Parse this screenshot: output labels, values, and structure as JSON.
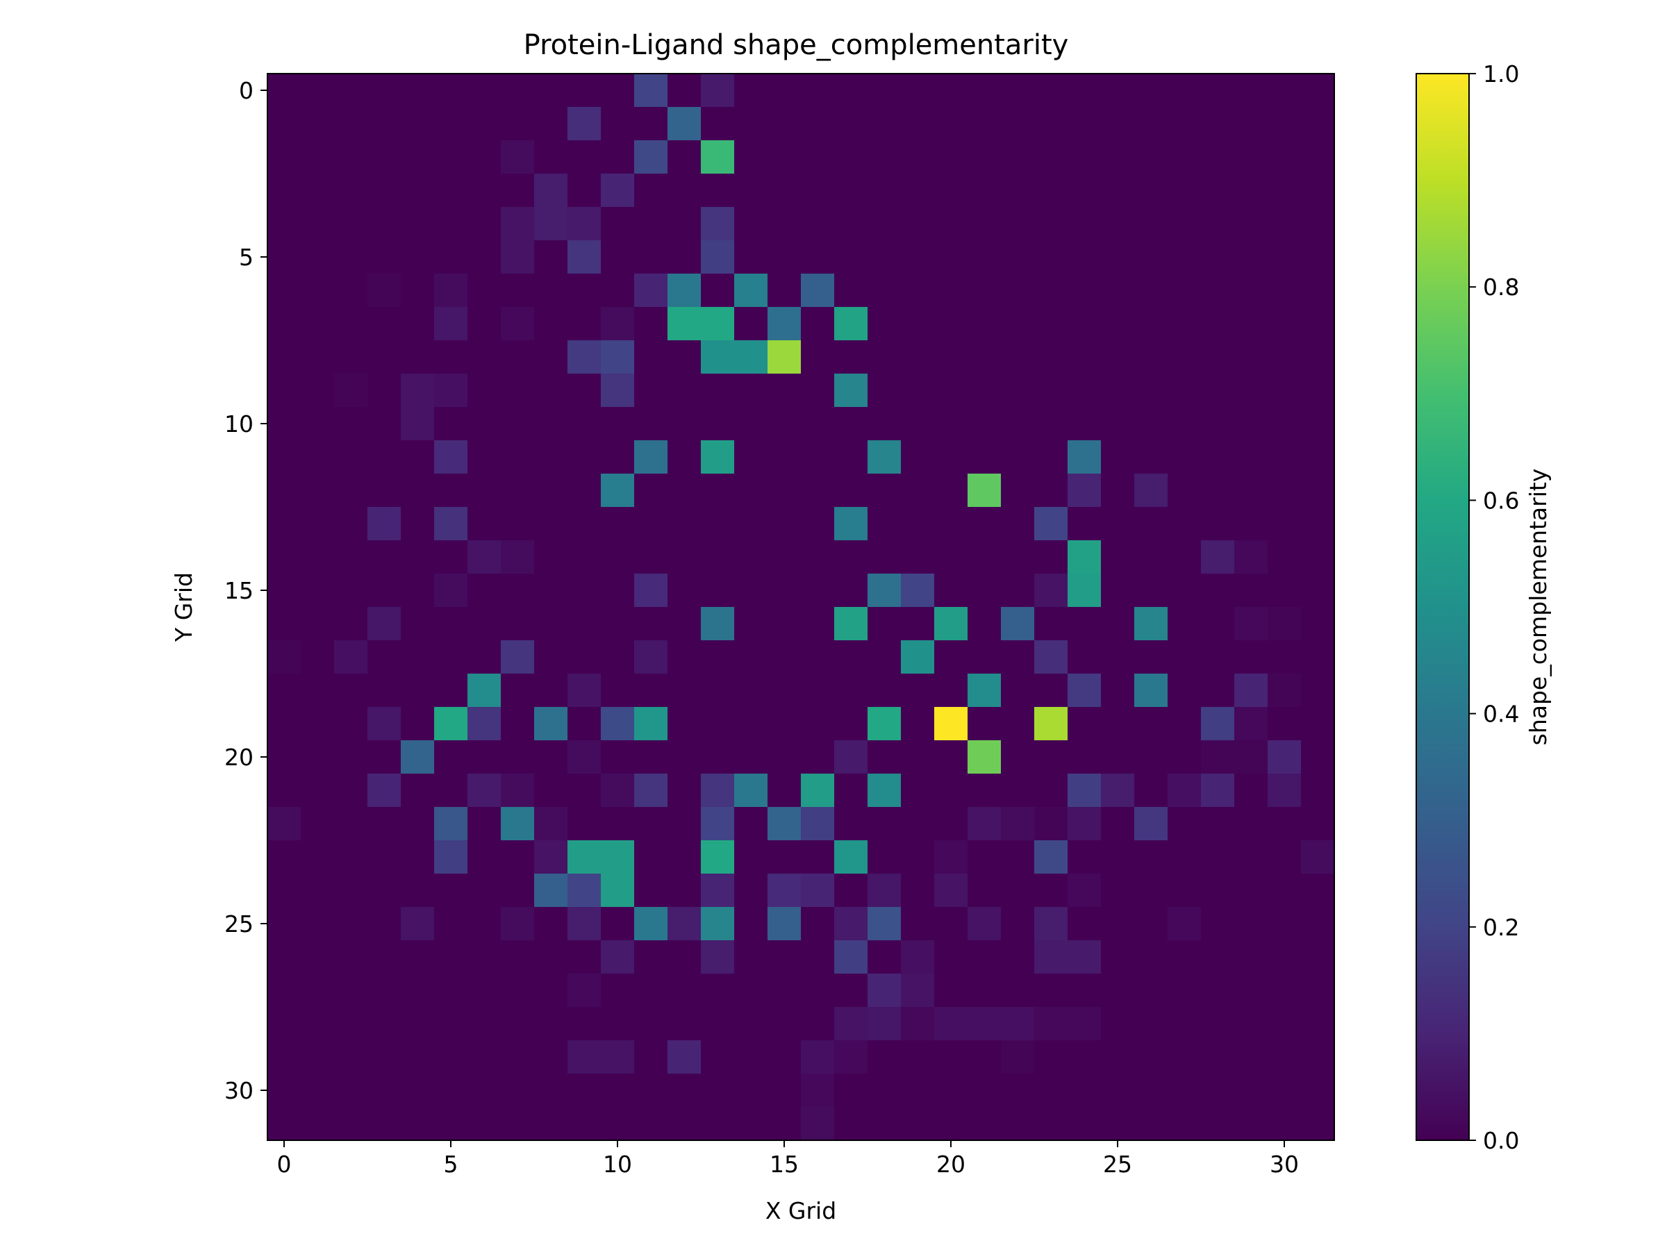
{
  "chart_data": {
    "type": "heatmap",
    "title": "Protein-Ligand shape_complementarity",
    "xlabel": "X Grid",
    "ylabel": "Y Grid",
    "colorbar_label": "shape_complementarity",
    "colormap": "viridis",
    "grid": false,
    "x_ticks": [
      0,
      5,
      10,
      15,
      20,
      25,
      30
    ],
    "y_ticks": [
      0,
      5,
      10,
      15,
      20,
      25,
      30
    ],
    "colorbar_ticks": [
      "0.0",
      "0.2",
      "0.4",
      "0.6",
      "0.8",
      "1.0"
    ],
    "vmin": 0.0,
    "vmax": 1.0,
    "xlim": [
      -0.5,
      31.5
    ],
    "ylim": [
      31.5,
      -0.5
    ],
    "values": [
      [
        0,
        0,
        0,
        0,
        0,
        0,
        0,
        0,
        0,
        0,
        0,
        0.2,
        0,
        0.07,
        0,
        0,
        0,
        0,
        0,
        0,
        0,
        0,
        0,
        0,
        0,
        0,
        0,
        0,
        0,
        0,
        0,
        0
      ],
      [
        0,
        0,
        0,
        0,
        0,
        0,
        0,
        0,
        0,
        0.13,
        0,
        0,
        0.32,
        0,
        0,
        0,
        0,
        0,
        0,
        0,
        0,
        0,
        0,
        0,
        0,
        0,
        0,
        0,
        0,
        0,
        0,
        0
      ],
      [
        0,
        0,
        0,
        0,
        0,
        0,
        0,
        0.03,
        0,
        0,
        0,
        0.22,
        0,
        0.67,
        0,
        0,
        0,
        0,
        0,
        0,
        0,
        0,
        0,
        0,
        0,
        0,
        0,
        0,
        0,
        0,
        0,
        0
      ],
      [
        0,
        0,
        0,
        0,
        0,
        0,
        0,
        0,
        0.08,
        0,
        0.1,
        0,
        0,
        0,
        0,
        0,
        0,
        0,
        0,
        0,
        0,
        0,
        0,
        0,
        0,
        0,
        0,
        0,
        0,
        0,
        0,
        0
      ],
      [
        0,
        0,
        0,
        0,
        0,
        0,
        0,
        0.05,
        0.08,
        0.07,
        0,
        0,
        0,
        0.15,
        0,
        0,
        0,
        0,
        0,
        0,
        0,
        0,
        0,
        0,
        0,
        0,
        0,
        0,
        0,
        0,
        0,
        0
      ],
      [
        0,
        0,
        0,
        0,
        0,
        0,
        0,
        0.05,
        0,
        0.15,
        0,
        0,
        0,
        0.18,
        0,
        0,
        0,
        0,
        0,
        0,
        0,
        0,
        0,
        0,
        0,
        0,
        0,
        0,
        0,
        0,
        0,
        0
      ],
      [
        0,
        0,
        0,
        0.01,
        0,
        0.03,
        0,
        0,
        0,
        0,
        0,
        0.1,
        0.4,
        0,
        0.43,
        0,
        0.3,
        0,
        0,
        0,
        0,
        0,
        0,
        0,
        0,
        0,
        0,
        0,
        0,
        0,
        0,
        0
      ],
      [
        0,
        0,
        0,
        0,
        0,
        0.06,
        0,
        0.02,
        0,
        0,
        0.03,
        0,
        0.6,
        0.6,
        0,
        0.36,
        0,
        0.58,
        0,
        0,
        0,
        0,
        0,
        0,
        0,
        0,
        0,
        0,
        0,
        0,
        0,
        0
      ],
      [
        0,
        0,
        0,
        0,
        0,
        0,
        0,
        0,
        0,
        0.17,
        0.2,
        0,
        0,
        0.5,
        0.5,
        0.85,
        0,
        0,
        0,
        0,
        0,
        0,
        0,
        0,
        0,
        0,
        0,
        0,
        0,
        0,
        0,
        0
      ],
      [
        0,
        0,
        0.01,
        0,
        0.05,
        0.04,
        0,
        0,
        0,
        0,
        0.15,
        0,
        0,
        0,
        0,
        0,
        0,
        0.45,
        0,
        0,
        0,
        0,
        0,
        0,
        0,
        0,
        0,
        0,
        0,
        0,
        0,
        0
      ],
      [
        0,
        0,
        0,
        0,
        0.05,
        0,
        0,
        0,
        0,
        0,
        0,
        0,
        0,
        0,
        0,
        0,
        0,
        0,
        0,
        0,
        0,
        0,
        0,
        0,
        0,
        0,
        0,
        0,
        0,
        0,
        0,
        0
      ],
      [
        0,
        0,
        0,
        0,
        0,
        0.12,
        0,
        0,
        0,
        0,
        0,
        0.37,
        0,
        0.55,
        0,
        0,
        0,
        0,
        0.45,
        0,
        0,
        0,
        0,
        0,
        0.37,
        0,
        0,
        0,
        0,
        0,
        0,
        0
      ],
      [
        0,
        0,
        0,
        0,
        0,
        0,
        0,
        0,
        0,
        0,
        0.42,
        0,
        0,
        0,
        0,
        0,
        0,
        0,
        0,
        0,
        0,
        0.75,
        0,
        0,
        0.1,
        0,
        0.08,
        0,
        0,
        0,
        0,
        0
      ],
      [
        0,
        0,
        0,
        0.1,
        0,
        0.14,
        0,
        0,
        0,
        0,
        0,
        0,
        0,
        0,
        0,
        0,
        0,
        0.42,
        0,
        0,
        0,
        0,
        0,
        0.2,
        0,
        0,
        0,
        0,
        0,
        0,
        0,
        0
      ],
      [
        0,
        0,
        0,
        0,
        0,
        0,
        0.05,
        0.03,
        0,
        0,
        0,
        0,
        0,
        0,
        0,
        0,
        0,
        0,
        0,
        0,
        0,
        0,
        0,
        0,
        0.57,
        0,
        0,
        0,
        0.08,
        0.02,
        0,
        0
      ],
      [
        0,
        0,
        0,
        0,
        0,
        0.03,
        0,
        0,
        0,
        0,
        0,
        0.12,
        0,
        0,
        0,
        0,
        0,
        0,
        0.37,
        0.2,
        0,
        0,
        0,
        0.05,
        0.55,
        0,
        0,
        0,
        0,
        0,
        0,
        0
      ],
      [
        0,
        0,
        0,
        0.06,
        0,
        0,
        0,
        0,
        0,
        0,
        0,
        0,
        0,
        0.38,
        0,
        0,
        0,
        0.57,
        0,
        0,
        0.55,
        0,
        0.3,
        0,
        0,
        0,
        0.45,
        0,
        0,
        0.02,
        0.01,
        0
      ],
      [
        0.01,
        0,
        0.04,
        0,
        0,
        0,
        0,
        0.15,
        0,
        0,
        0,
        0.06,
        0,
        0,
        0,
        0,
        0,
        0,
        0,
        0.5,
        0,
        0,
        0,
        0.13,
        0,
        0,
        0,
        0,
        0,
        0,
        0,
        0
      ],
      [
        0,
        0,
        0,
        0,
        0,
        0,
        0.48,
        0,
        0,
        0.05,
        0,
        0,
        0,
        0,
        0,
        0,
        0,
        0,
        0,
        0,
        0,
        0.48,
        0,
        0,
        0.17,
        0,
        0.4,
        0,
        0,
        0.1,
        0.01,
        0
      ],
      [
        0,
        0,
        0,
        0.06,
        0,
        0.6,
        0.15,
        0,
        0.37,
        0,
        0.23,
        0.52,
        0,
        0,
        0,
        0,
        0,
        0,
        0.6,
        0,
        1.0,
        0,
        0,
        0.87,
        0,
        0,
        0,
        0,
        0.18,
        0.02,
        0,
        0
      ],
      [
        0,
        0,
        0,
        0,
        0.32,
        0,
        0,
        0,
        0,
        0.03,
        0,
        0,
        0,
        0,
        0,
        0,
        0,
        0.07,
        0,
        0,
        0,
        0.78,
        0,
        0,
        0,
        0,
        0,
        0,
        0.01,
        0.01,
        0.1,
        0
      ],
      [
        0,
        0,
        0,
        0.1,
        0,
        0,
        0.07,
        0.03,
        0,
        0,
        0.03,
        0.15,
        0,
        0.15,
        0.4,
        0,
        0.55,
        0,
        0.48,
        0,
        0,
        0,
        0,
        0,
        0.18,
        0.08,
        0,
        0.04,
        0.1,
        0,
        0.06,
        0
      ],
      [
        0.03,
        0,
        0,
        0,
        0,
        0.27,
        0,
        0.4,
        0.03,
        0,
        0,
        0,
        0,
        0.2,
        0,
        0.32,
        0.18,
        0,
        0,
        0,
        0,
        0.05,
        0.03,
        0.01,
        0.05,
        0,
        0.16,
        0,
        0,
        0,
        0,
        0
      ],
      [
        0,
        0,
        0,
        0,
        0,
        0.18,
        0,
        0,
        0.05,
        0.55,
        0.55,
        0,
        0,
        0.6,
        0,
        0,
        0,
        0.52,
        0,
        0,
        0.02,
        0,
        0,
        0.22,
        0,
        0,
        0,
        0,
        0,
        0,
        0,
        0.03
      ],
      [
        0,
        0,
        0,
        0,
        0,
        0,
        0,
        0,
        0.3,
        0.2,
        0.55,
        0,
        0,
        0.1,
        0,
        0.12,
        0.1,
        0,
        0.06,
        0,
        0.05,
        0,
        0,
        0,
        0.02,
        0,
        0,
        0,
        0,
        0,
        0,
        0
      ],
      [
        0,
        0,
        0,
        0,
        0.05,
        0,
        0,
        0.03,
        0,
        0.08,
        0,
        0.4,
        0.08,
        0.45,
        0,
        0.3,
        0,
        0.07,
        0.25,
        0,
        0,
        0.05,
        0,
        0.08,
        0,
        0,
        0,
        0.02,
        0,
        0,
        0,
        0
      ],
      [
        0,
        0,
        0,
        0,
        0,
        0,
        0,
        0,
        0,
        0,
        0.07,
        0,
        0,
        0.08,
        0,
        0,
        0,
        0.18,
        0,
        0.04,
        0,
        0,
        0,
        0.07,
        0.07,
        0,
        0,
        0,
        0,
        0,
        0,
        0
      ],
      [
        0,
        0,
        0,
        0,
        0,
        0,
        0,
        0,
        0,
        0.02,
        0,
        0,
        0,
        0,
        0,
        0,
        0,
        0,
        0.1,
        0.05,
        0,
        0,
        0,
        0,
        0,
        0,
        0,
        0,
        0,
        0,
        0,
        0
      ],
      [
        0,
        0,
        0,
        0,
        0,
        0,
        0,
        0,
        0,
        0,
        0,
        0,
        0,
        0,
        0,
        0,
        0,
        0.05,
        0.06,
        0.02,
        0.04,
        0.04,
        0.04,
        0.02,
        0.02,
        0,
        0,
        0,
        0,
        0,
        0,
        0
      ],
      [
        0,
        0,
        0,
        0,
        0,
        0,
        0,
        0,
        0,
        0.05,
        0.05,
        0,
        0.1,
        0,
        0,
        0,
        0.04,
        0.02,
        0,
        0,
        0,
        0,
        0.01,
        0,
        0,
        0,
        0,
        0,
        0,
        0,
        0,
        0
      ],
      [
        0,
        0,
        0,
        0,
        0,
        0,
        0,
        0,
        0,
        0,
        0,
        0,
        0,
        0,
        0,
        0,
        0.02,
        0,
        0,
        0,
        0,
        0,
        0,
        0,
        0,
        0,
        0,
        0,
        0,
        0,
        0,
        0
      ],
      [
        0,
        0,
        0,
        0,
        0,
        0,
        0,
        0,
        0,
        0,
        0,
        0,
        0,
        0,
        0,
        0,
        0.03,
        0,
        0,
        0,
        0,
        0,
        0,
        0,
        0,
        0,
        0,
        0,
        0,
        0,
        0,
        0
      ]
    ]
  }
}
